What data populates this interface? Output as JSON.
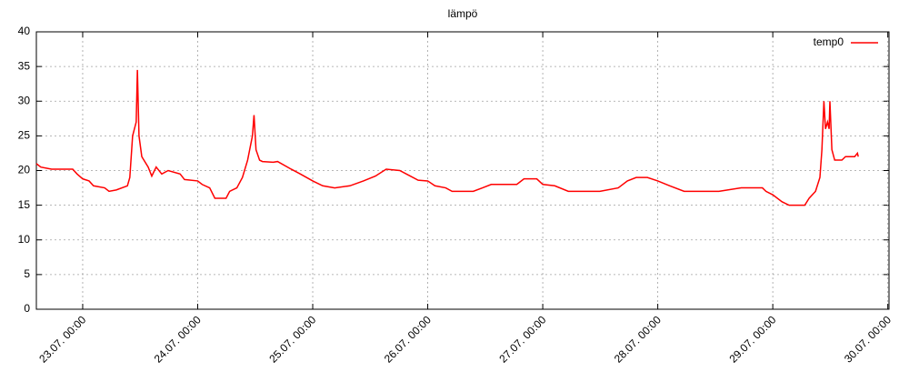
{
  "chart_data": {
    "type": "line",
    "title": "lämpö",
    "x": [
      "22.07. 14:20",
      "22.07. 15:15",
      "22.07. 17:30",
      "22.07. 21:55",
      "22.07. 22:50",
      "23.07. 00:00",
      "23.07. 01:20",
      "23.07. 02:15",
      "23.07. 04:35",
      "23.07. 05:30",
      "23.07. 07:00",
      "23.07. 09:20",
      "23.07. 09:50",
      "23.07. 10:25",
      "23.07. 11:10",
      "23.07. 11:25",
      "23.07. 11:45",
      "23.07. 12:20",
      "23.07. 13:40",
      "23.07. 14:25",
      "23.07. 15:20",
      "23.07. 16:30",
      "23.07. 17:50",
      "23.07. 20:20",
      "23.07. 21:15",
      "24.07. 00:00",
      "24.07. 00:55",
      "24.07. 02:30",
      "24.07. 03:35",
      "24.07. 05:55",
      "24.07. 06:40",
      "24.07. 08:10",
      "24.07. 09:20",
      "24.07. 10:25",
      "24.07. 11:25",
      "24.07. 11:45",
      "24.07. 12:10",
      "24.07. 12:55",
      "24.07. 13:30",
      "24.07. 15:45",
      "24.07. 16:40",
      "24.07. 19:30",
      "24.07. 21:25",
      "25.07. 00:00",
      "25.07. 02:05",
      "25.07. 04:35",
      "25.07. 07:45",
      "25.07. 10:35",
      "25.07. 13:05",
      "25.07. 15:20",
      "25.07. 18:10",
      "25.07. 20:05",
      "25.07. 22:00",
      "26.07. 00:00",
      "26.07. 01:30",
      "26.07. 03:45",
      "26.07. 05:05",
      "26.07. 09:30",
      "26.07. 11:25",
      "26.07. 13:15",
      "26.07. 18:35",
      "26.07. 20:05",
      "26.07. 22:45",
      "27.07. 00:00",
      "27.07. 02:30",
      "27.07. 05:20",
      "27.07. 11:55",
      "27.07. 15:45",
      "27.07. 17:40",
      "27.07. 19:30",
      "27.07. 21:50",
      "28.07. 00:00",
      "28.07. 02:30",
      "28.07. 05:30",
      "28.07. 12:45",
      "28.07. 17:25",
      "28.07. 21:50",
      "28.07. 22:35",
      "29.07. 00:00",
      "29.07. 01:55",
      "29.07. 03:25",
      "29.07. 06:40",
      "29.07. 07:35",
      "29.07. 08:55",
      "29.07. 09:50",
      "29.07. 10:15",
      "29.07. 10:40",
      "29.07. 11:00",
      "29.07. 11:25",
      "29.07. 11:45",
      "29.07. 11:55",
      "29.07. 12:20",
      "29.07. 12:55",
      "29.07. 14:25",
      "29.07. 15:10",
      "29.07. 17:05",
      "29.07. 17:40",
      "29.07. 17:50"
    ],
    "series": [
      {
        "name": "temp0",
        "color": "#ff0000",
        "values": [
          21,
          20.5,
          20.2,
          20.2,
          19.5,
          18.8,
          18.5,
          17.8,
          17.5,
          17,
          17.2,
          17.8,
          19,
          25,
          27,
          34.5,
          25,
          22,
          20.5,
          19.2,
          20.5,
          19.5,
          20,
          19.5,
          18.7,
          18.5,
          18,
          17.5,
          16,
          16,
          17,
          17.5,
          19,
          21.5,
          25,
          28,
          23,
          21.5,
          21.3,
          21.2,
          21.3,
          20.2,
          19.5,
          18.5,
          17.8,
          17.5,
          17.8,
          18.5,
          19.2,
          20.2,
          20,
          19.3,
          18.6,
          18.5,
          17.8,
          17.5,
          17,
          17,
          17.5,
          18,
          18,
          18.8,
          18.8,
          18,
          17.8,
          17,
          17,
          17.5,
          18.5,
          19,
          19,
          18.5,
          17.8,
          17,
          17,
          17.5,
          17.5,
          17,
          16.5,
          15.5,
          15,
          15,
          16,
          17,
          19,
          23,
          30,
          26,
          27,
          26,
          30,
          23,
          21.5,
          21.5,
          22,
          22,
          22.5,
          22
        ]
      }
    ],
    "xlim": [
      "22.07. 14:20",
      "30.07. 00:15"
    ],
    "xticks": [
      "23.07. 00:00",
      "24.07. 00:00",
      "25.07. 00:00",
      "26.07. 00:00",
      "27.07. 00:00",
      "28.07. 00:00",
      "29.07. 00:00",
      "30.07. 00:00"
    ],
    "ylim": [
      0,
      40
    ],
    "yticks": [
      0,
      5,
      10,
      15,
      20,
      25,
      30,
      35,
      40
    ],
    "grid": true,
    "legend": "top-right"
  }
}
